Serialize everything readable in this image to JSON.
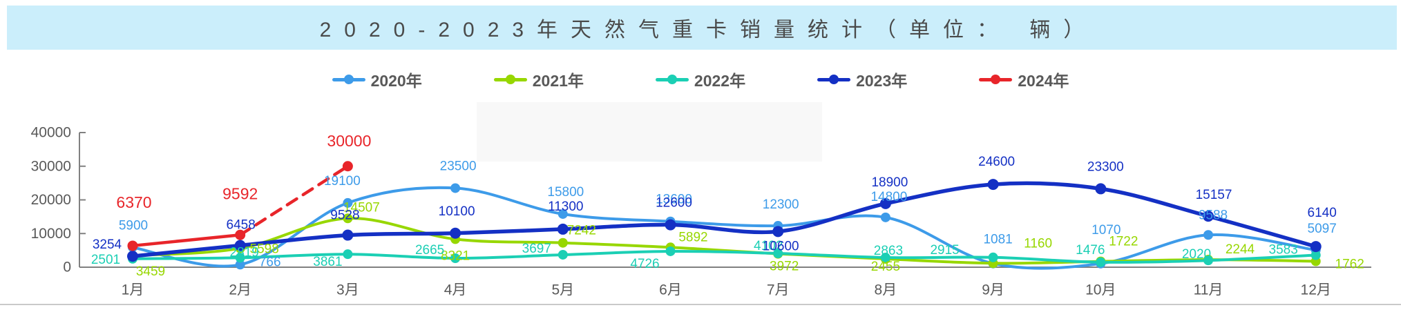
{
  "header": {
    "title": "2020-2023年天然气重卡销量统计（单位： 辆）"
  },
  "chart_data": {
    "type": "line",
    "title": "2020-2023年天然气重卡销量统计（单位： 辆）",
    "categories": [
      "1月",
      "2月",
      "3月",
      "4月",
      "5月",
      "6月",
      "7月",
      "8月",
      "9月",
      "10月",
      "11月",
      "12月"
    ],
    "series": [
      {
        "name": "2020年",
        "color": "#3D9BE9",
        "values": [
          5900,
          766,
          19100,
          23500,
          15800,
          13600,
          12300,
          14800,
          1081,
          1070,
          9588,
          5097
        ]
      },
      {
        "name": "2021年",
        "color": "#97D700",
        "values": [
          3459,
          5598,
          14507,
          8321,
          7242,
          5892,
          3972,
          2455,
          1160,
          1722,
          2244,
          1762
        ]
      },
      {
        "name": "2022年",
        "color": "#1BCFB4",
        "values": [
          2501,
          2819,
          3861,
          2665,
          3697,
          4726,
          4102,
          2863,
          2915,
          1476,
          2020,
          3583
        ]
      },
      {
        "name": "2023年",
        "color": "#1430C4",
        "values": [
          3254,
          6458,
          9528,
          10100,
          11300,
          12600,
          10600,
          18900,
          24600,
          23300,
          15157,
          6140
        ]
      },
      {
        "name": "2024年",
        "color": "#E8252A",
        "values": [
          6370,
          9592,
          30000
        ],
        "dashed_from_index": 1
      }
    ],
    "ylim": [
      0,
      40000
    ],
    "yticks": [
      0,
      10000,
      20000,
      30000,
      40000
    ],
    "grid": false,
    "legend_position": "top",
    "axis_color": "#808080",
    "tick_label_color": "#595959",
    "label_offsets": [
      [
        [
          1,
          -31
        ],
        [
          43,
          -3
        ],
        [
          -8,
          -31
        ],
        [
          4,
          -31
        ],
        [
          4,
          -31
        ],
        [
          5,
          -31
        ],
        [
          4,
          -30
        ],
        [
          5,
          -29
        ],
        [
          7,
          -34
        ],
        [
          8,
          -48
        ],
        [
          7,
          -28
        ],
        [
          9,
          -30
        ]
      ],
      [
        [
          26,
          24
        ],
        [
          35,
          2
        ],
        [
          20,
          -15
        ],
        [
          0,
          25
        ],
        [
          27,
          -17
        ],
        [
          33,
          -14
        ],
        [
          9,
          19
        ],
        [
          0,
          12
        ],
        [
          65,
          -28
        ],
        [
          33,
          -28
        ],
        [
          46,
          -14
        ],
        [
          49,
          5
        ]
      ],
      [
        [
          -39,
          2
        ],
        [
          6,
          -7
        ],
        [
          -29,
          12
        ],
        [
          -37,
          -11
        ],
        [
          -38,
          -8
        ],
        [
          -37,
          19
        ],
        [
          -14,
          -10
        ],
        [
          4,
          -9
        ],
        [
          -70,
          -10
        ],
        [
          -15,
          -17
        ],
        [
          -17,
          -8
        ],
        [
          -47,
          -7
        ]
      ],
      [
        [
          -37,
          -16
        ],
        [
          1,
          -29
        ],
        [
          -4,
          -28
        ],
        [
          2,
          -31
        ],
        [
          4,
          -32
        ],
        [
          5,
          -31
        ],
        [
          4,
          22
        ],
        [
          6,
          -30
        ],
        [
          5,
          -32
        ],
        [
          7,
          -31
        ],
        [
          8,
          -30
        ],
        [
          9,
          -48
        ]
      ],
      [
        [
          2,
          -61
        ],
        [
          0,
          -58
        ],
        [
          2,
          -35
        ]
      ]
    ]
  }
}
